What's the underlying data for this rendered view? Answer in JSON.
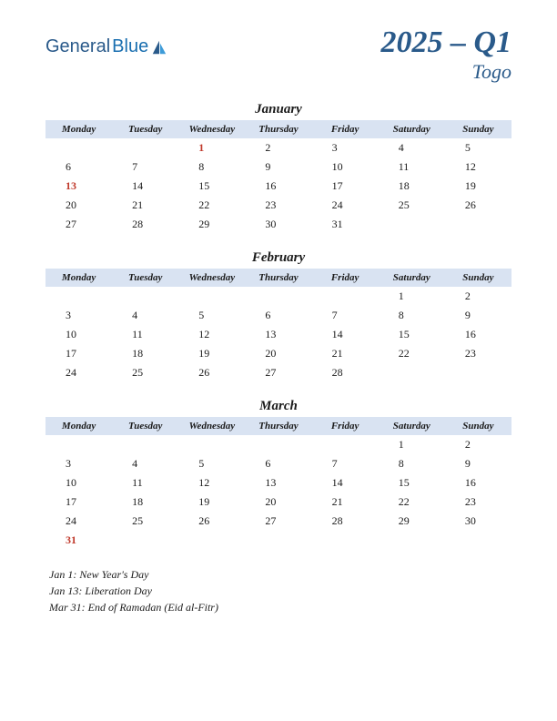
{
  "logo": {
    "part1": "General",
    "part2": "Blue"
  },
  "title": "2025 – Q1",
  "country": "Togo",
  "colors": {
    "header_bg": "#d9e3f2",
    "brand": "#2a5a8a",
    "holiday": "#c0392b",
    "text": "#1a1a1a",
    "page_bg": "#ffffff"
  },
  "day_headers": [
    "Monday",
    "Tuesday",
    "Wednesday",
    "Thursday",
    "Friday",
    "Saturday",
    "Sunday"
  ],
  "months": [
    {
      "name": "January",
      "weeks": [
        [
          {
            "d": ""
          },
          {
            "d": ""
          },
          {
            "d": "1",
            "h": true
          },
          {
            "d": "2"
          },
          {
            "d": "3"
          },
          {
            "d": "4"
          },
          {
            "d": "5"
          }
        ],
        [
          {
            "d": "6"
          },
          {
            "d": "7"
          },
          {
            "d": "8"
          },
          {
            "d": "9"
          },
          {
            "d": "10"
          },
          {
            "d": "11"
          },
          {
            "d": "12"
          }
        ],
        [
          {
            "d": "13",
            "h": true
          },
          {
            "d": "14"
          },
          {
            "d": "15"
          },
          {
            "d": "16"
          },
          {
            "d": "17"
          },
          {
            "d": "18"
          },
          {
            "d": "19"
          }
        ],
        [
          {
            "d": "20"
          },
          {
            "d": "21"
          },
          {
            "d": "22"
          },
          {
            "d": "23"
          },
          {
            "d": "24"
          },
          {
            "d": "25"
          },
          {
            "d": "26"
          }
        ],
        [
          {
            "d": "27"
          },
          {
            "d": "28"
          },
          {
            "d": "29"
          },
          {
            "d": "30"
          },
          {
            "d": "31"
          },
          {
            "d": ""
          },
          {
            "d": ""
          }
        ]
      ]
    },
    {
      "name": "February",
      "weeks": [
        [
          {
            "d": ""
          },
          {
            "d": ""
          },
          {
            "d": ""
          },
          {
            "d": ""
          },
          {
            "d": ""
          },
          {
            "d": "1"
          },
          {
            "d": "2"
          }
        ],
        [
          {
            "d": "3"
          },
          {
            "d": "4"
          },
          {
            "d": "5"
          },
          {
            "d": "6"
          },
          {
            "d": "7"
          },
          {
            "d": "8"
          },
          {
            "d": "9"
          }
        ],
        [
          {
            "d": "10"
          },
          {
            "d": "11"
          },
          {
            "d": "12"
          },
          {
            "d": "13"
          },
          {
            "d": "14"
          },
          {
            "d": "15"
          },
          {
            "d": "16"
          }
        ],
        [
          {
            "d": "17"
          },
          {
            "d": "18"
          },
          {
            "d": "19"
          },
          {
            "d": "20"
          },
          {
            "d": "21"
          },
          {
            "d": "22"
          },
          {
            "d": "23"
          }
        ],
        [
          {
            "d": "24"
          },
          {
            "d": "25"
          },
          {
            "d": "26"
          },
          {
            "d": "27"
          },
          {
            "d": "28"
          },
          {
            "d": ""
          },
          {
            "d": ""
          }
        ]
      ]
    },
    {
      "name": "March",
      "weeks": [
        [
          {
            "d": ""
          },
          {
            "d": ""
          },
          {
            "d": ""
          },
          {
            "d": ""
          },
          {
            "d": ""
          },
          {
            "d": "1"
          },
          {
            "d": "2"
          }
        ],
        [
          {
            "d": "3"
          },
          {
            "d": "4"
          },
          {
            "d": "5"
          },
          {
            "d": "6"
          },
          {
            "d": "7"
          },
          {
            "d": "8"
          },
          {
            "d": "9"
          }
        ],
        [
          {
            "d": "10"
          },
          {
            "d": "11"
          },
          {
            "d": "12"
          },
          {
            "d": "13"
          },
          {
            "d": "14"
          },
          {
            "d": "15"
          },
          {
            "d": "16"
          }
        ],
        [
          {
            "d": "17"
          },
          {
            "d": "18"
          },
          {
            "d": "19"
          },
          {
            "d": "20"
          },
          {
            "d": "21"
          },
          {
            "d": "22"
          },
          {
            "d": "23"
          }
        ],
        [
          {
            "d": "24"
          },
          {
            "d": "25"
          },
          {
            "d": "26"
          },
          {
            "d": "27"
          },
          {
            "d": "28"
          },
          {
            "d": "29"
          },
          {
            "d": "30"
          }
        ],
        [
          {
            "d": "31",
            "h": true
          },
          {
            "d": ""
          },
          {
            "d": ""
          },
          {
            "d": ""
          },
          {
            "d": ""
          },
          {
            "d": ""
          },
          {
            "d": ""
          }
        ]
      ]
    }
  ],
  "holiday_list": [
    "Jan 1: New Year's Day",
    "Jan 13: Liberation Day",
    "Mar 31: End of Ramadan (Eid al-Fitr)"
  ]
}
